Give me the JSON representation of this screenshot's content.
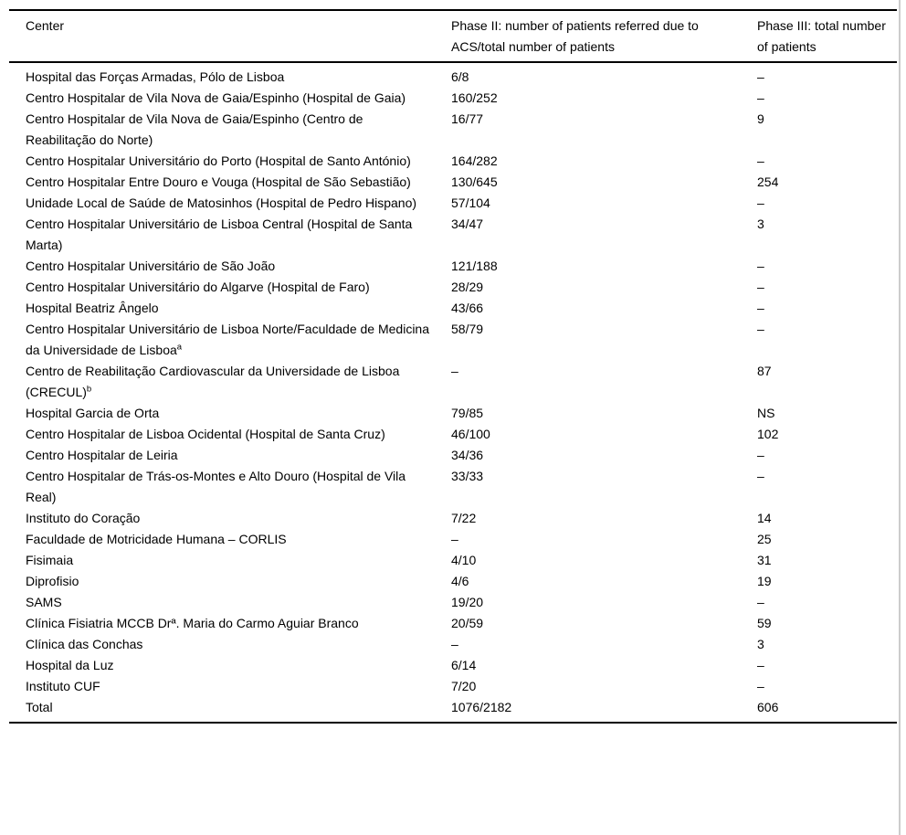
{
  "columns": [
    {
      "label": "Center"
    },
    {
      "label": "Phase II: number of patients referred due to ACS/total number of patients"
    },
    {
      "label": "Phase III: total number of patients"
    }
  ],
  "rows": [
    {
      "center": "Hospital das Forças Armadas, Pólo de Lisboa",
      "phase2": "6/8",
      "phase3": "–"
    },
    {
      "center": "Centro Hospitalar de Vila Nova de Gaia/Espinho (Hospital de Gaia)",
      "phase2": "160/252",
      "phase3": "–"
    },
    {
      "center": "Centro Hospitalar de Vila Nova de Gaia/Espinho (Centro de Reabilitação do Norte)",
      "phase2": "16/77",
      "phase3": "9"
    },
    {
      "center": "Centro Hospitalar Universitário do Porto (Hospital de Santo António)",
      "phase2": "164/282",
      "phase3": "–"
    },
    {
      "center": "Centro Hospitalar Entre Douro e Vouga (Hospital de São Sebastião)",
      "phase2": "130/645",
      "phase3": "254"
    },
    {
      "center": "Unidade Local de Saúde de Matosinhos (Hospital de Pedro Hispano)",
      "phase2": "57/104",
      "phase3": "–"
    },
    {
      "center": "Centro Hospitalar Universitário de Lisboa Central (Hospital de Santa Marta)",
      "phase2": "34/47",
      "phase3": "3"
    },
    {
      "center": "Centro Hospitalar Universitário de São João",
      "phase2": "121/188",
      "phase3": "–"
    },
    {
      "center": "Centro Hospitalar Universitário do Algarve (Hospital de Faro)",
      "phase2": "28/29",
      "phase3": "–"
    },
    {
      "center": "Hospital Beatriz Ângelo",
      "phase2": "43/66",
      "phase3": "–"
    },
    {
      "center": "Centro Hospitalar Universitário de Lisboa Norte/Faculdade de Medicina da Universidade de Lisboa",
      "center_sup": "a",
      "phase2": "58/79",
      "phase3": "–"
    },
    {
      "center": "Centro de Reabilitação Cardiovascular da Universidade de Lisboa (CRECUL)",
      "center_sup": "b",
      "phase2": "–",
      "phase3": "87"
    },
    {
      "center": "Hospital Garcia de Orta",
      "phase2": "79/85",
      "phase3": "NS"
    },
    {
      "center": "Centro Hospitalar de Lisboa Ocidental (Hospital de Santa Cruz)",
      "phase2": "46/100",
      "phase3": "102"
    },
    {
      "center": "Centro Hospitalar de Leiria",
      "phase2": "34/36",
      "phase3": "–"
    },
    {
      "center": "Centro Hospitalar de Trás-os-Montes e Alto Douro (Hospital de Vila Real)",
      "phase2": "33/33",
      "phase3": "–"
    },
    {
      "center": "Instituto do Coração",
      "phase2": "7/22",
      "phase3": "14"
    },
    {
      "center": "Faculdade de Motricidade Humana – CORLIS",
      "phase2": "–",
      "phase3": "25"
    },
    {
      "center": "Fisimaia",
      "phase2": "4/10",
      "phase3": "31"
    },
    {
      "center": "Diprofisio",
      "phase2": "4/6",
      "phase3": "19"
    },
    {
      "center": "SAMS",
      "phase2": "19/20",
      "phase3": "–"
    },
    {
      "center": "Clínica Fisiatria MCCB Drª. Maria do Carmo Aguiar Branco",
      "phase2": "20/59",
      "phase3": "59"
    },
    {
      "center": "Clínica das Conchas",
      "phase2": "–",
      "phase3": "3"
    },
    {
      "center": "Hospital da Luz",
      "phase2": "6/14",
      "phase3": "–"
    },
    {
      "center": "Instituto CUF",
      "phase2": "7/20",
      "phase3": "–"
    },
    {
      "center": "Total",
      "phase2": "1076/2182",
      "phase3": "606"
    }
  ],
  "colors": {
    "rule": "#000000",
    "text": "#000000",
    "edge_line": "#cccccc"
  }
}
